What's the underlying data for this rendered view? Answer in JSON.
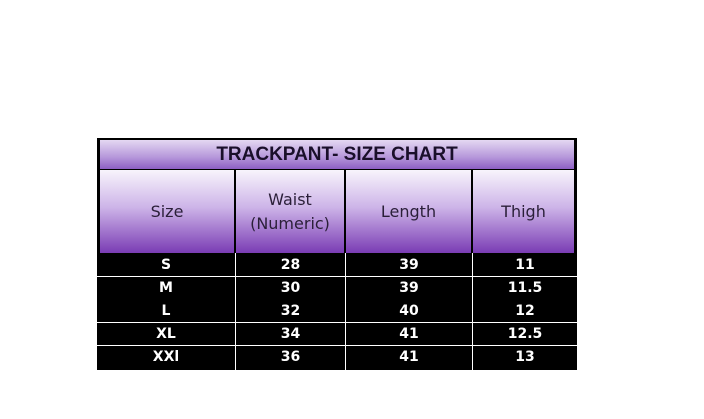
{
  "title": "TRACKPANT- SIZE CHART",
  "headers": [
    "Size",
    "Waist\n(Numeric)",
    "Length",
    "Thigh"
  ],
  "header_waist_line1": "Waist",
  "header_waist_line2": "(Numeric)",
  "rows": [
    [
      "S",
      "28",
      "39",
      "11"
    ],
    [
      "M",
      "30",
      "39",
      "11.5"
    ],
    [
      "L",
      "32",
      "40",
      "12"
    ],
    [
      "XL",
      "34",
      "41",
      "12.5"
    ],
    [
      "XXl",
      "36",
      "41",
      "13"
    ]
  ],
  "colors": {
    "header_purple": "#7a3cb4",
    "row_bg": "#000000",
    "row_text": "#ffffff"
  }
}
